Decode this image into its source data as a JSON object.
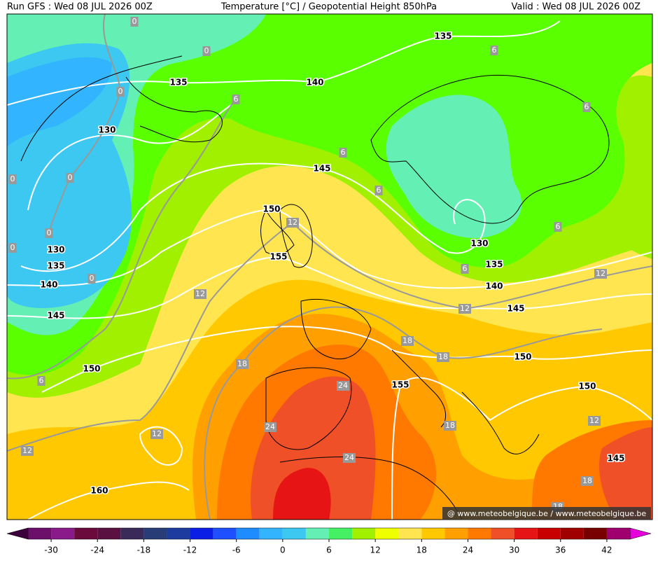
{
  "header": {
    "left": "Run GFS : Wed 08 JUL 2026 00Z",
    "center": "Temperature [°C] / Geopotential Height 850hPa",
    "right": "Valid : Wed 08 JUL 2026 00Z"
  },
  "height_labels": [
    135,
    135,
    140,
    130,
    145,
    150,
    130,
    135,
    155,
    140,
    130,
    135,
    140,
    145,
    145,
    150,
    150,
    155,
    150,
    145,
    160
  ],
  "temperature_labels": [
    0,
    0,
    0,
    6,
    6,
    6,
    6,
    0,
    0,
    6,
    0,
    0,
    12,
    6,
    0,
    6,
    12,
    12,
    12,
    18,
    18,
    18,
    6,
    24,
    24,
    18,
    12,
    12,
    12,
    24,
    18,
    18
  ],
  "colorbar": {
    "range": [
      -33,
      45
    ],
    "ticks": [
      -30,
      -24,
      -18,
      -12,
      -6,
      0,
      6,
      12,
      18,
      24,
      30,
      36,
      42
    ],
    "colors": [
      "#6b0f6b",
      "#8a1a8a",
      "#6b0a3c",
      "#5a1040",
      "#3a2a5a",
      "#283c78",
      "#1e3ca0",
      "#0a1ee6",
      "#1e50ff",
      "#1e8cff",
      "#32b4ff",
      "#3cc8f0",
      "#64f0b4",
      "#46f064",
      "#a0f000",
      "#f0ff00",
      "#ffe650",
      "#ffc800",
      "#ffa000",
      "#ff7800",
      "#f05028",
      "#e61414",
      "#c80000",
      "#a00000",
      "#780000",
      "#a0006e"
    ],
    "under_color": "#3c003c",
    "over_color": "#e600dc"
  },
  "watermark": "@ www.meteobelgique.be / www.meteobelgique.be"
}
